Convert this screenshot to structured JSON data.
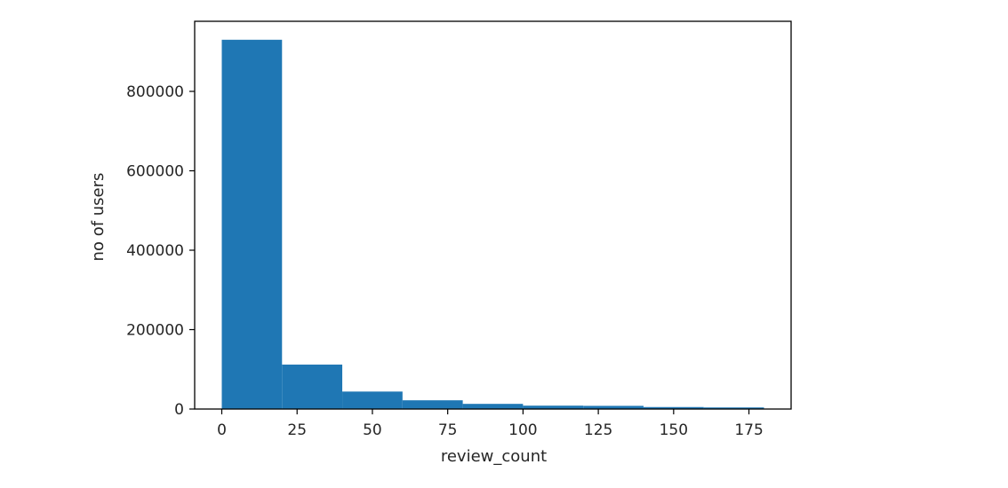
{
  "chart_data": {
    "type": "bar",
    "subtype": "histogram",
    "title": "",
    "xlabel": "review_count",
    "ylabel": "no of users",
    "bin_edges": [
      0,
      20,
      40,
      60,
      80,
      100,
      120,
      140,
      160,
      180
    ],
    "values": [
      930000,
      112000,
      44000,
      22000,
      13000,
      8500,
      8000,
      5000,
      4000
    ],
    "xlim": [
      -9,
      189
    ],
    "ylim": [
      0,
      976500
    ],
    "xticks": [
      0,
      25,
      50,
      75,
      100,
      125,
      150,
      175
    ],
    "xtick_labels": [
      "0",
      "25",
      "50",
      "75",
      "100",
      "125",
      "150",
      "175"
    ],
    "yticks": [
      0,
      200000,
      400000,
      600000,
      800000
    ],
    "ytick_labels": [
      "0",
      "200000",
      "400000",
      "600000",
      "800000"
    ],
    "grid": false,
    "legend": "none",
    "bar_color": "#1f77b4"
  }
}
